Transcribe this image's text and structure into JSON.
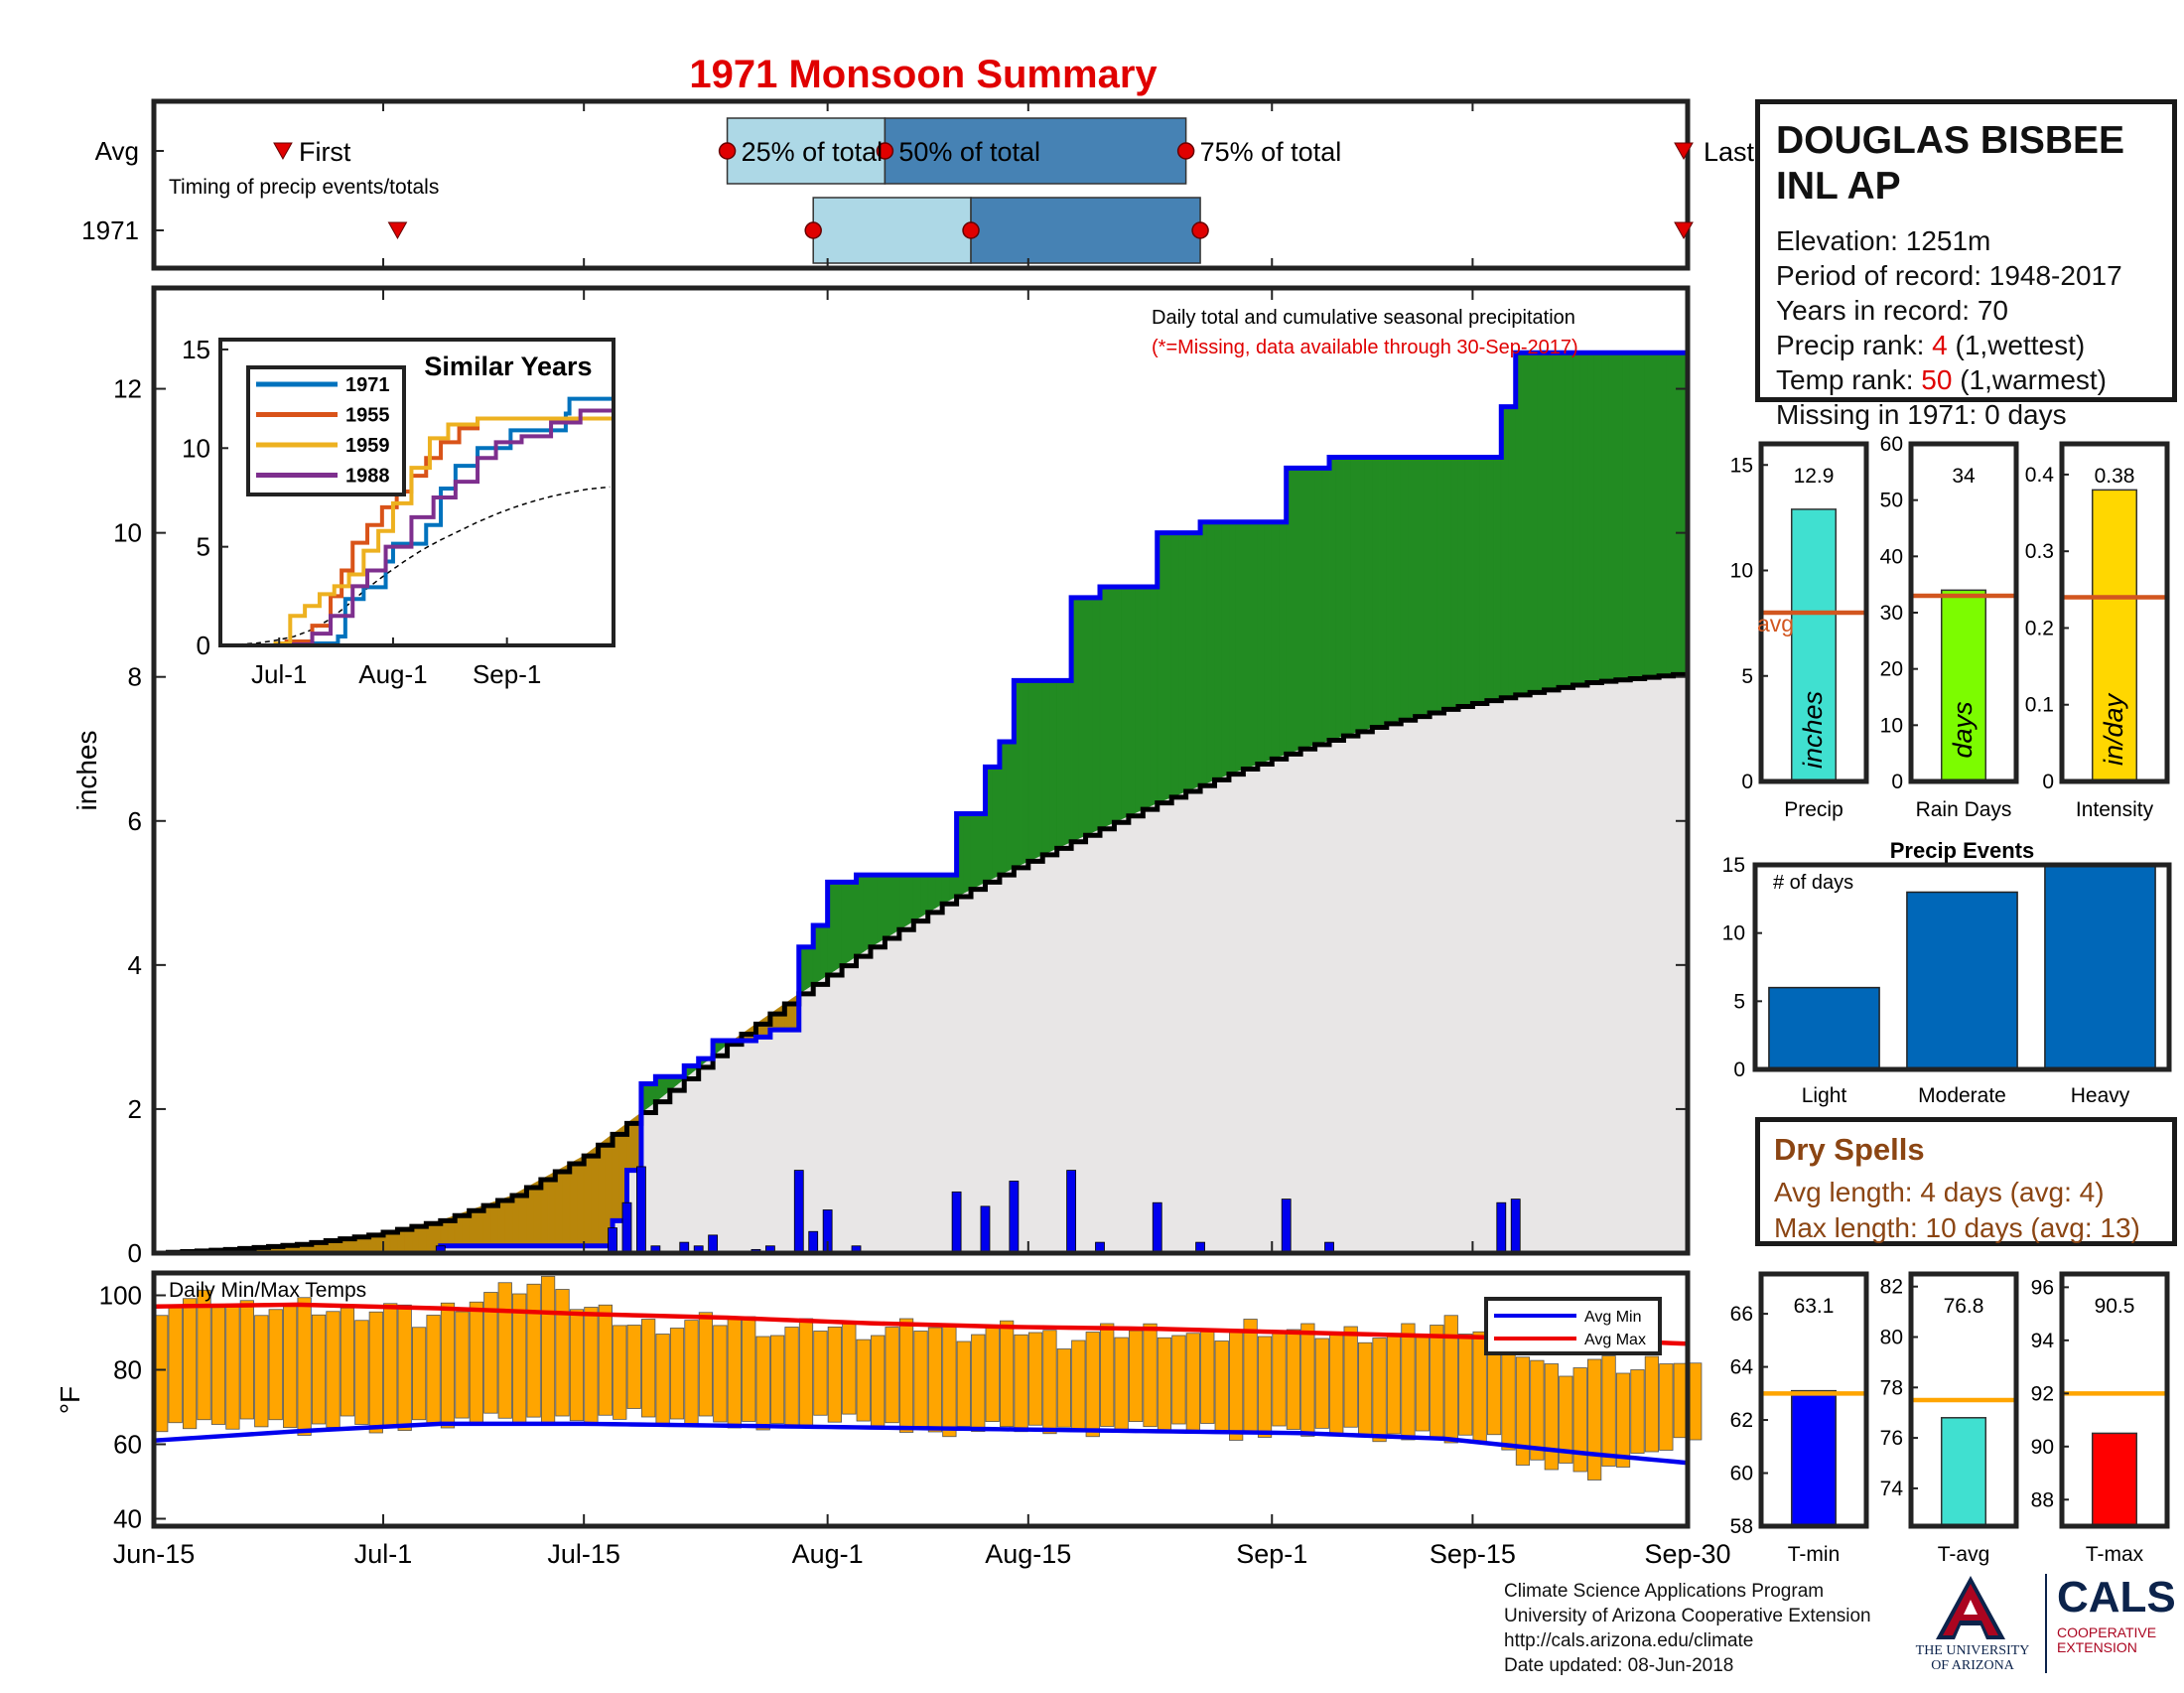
{
  "title": "1971 Monsoon Summary",
  "colors": {
    "title": "#e00000",
    "boxLight": "#add8e6",
    "boxDark": "#4682b4",
    "green": "#228b22",
    "brown": "#b8860b",
    "grey": "#e8e6e6",
    "blue": "#0000ee",
    "orange": "#ffa500",
    "avgLine": "#d2561f",
    "red": "#ee0000",
    "eventBar": "#0067b8"
  },
  "timing": {
    "row_labels": [
      "Avg",
      "1971"
    ],
    "avg_labels": {
      "first": "First",
      "p25": "25% of total",
      "p50": "50% of total",
      "p75": "75% of total",
      "last": "Last"
    },
    "subtitle": "Timing of precip events/totals",
    "avg": {
      "first": 9,
      "p25": 40,
      "p50": 51,
      "p75": 72,
      "last": 107
    },
    "y1971": {
      "first": 17,
      "p25": 46,
      "p50": 57,
      "p75": 73,
      "last": 122
    }
  },
  "info": {
    "station_line1": "DOUGLAS BISBEE",
    "station_line2": "INL AP",
    "elevation": "Elevation: 1251m",
    "period": "Period of record: 1948-2017",
    "years": "Years in record: 70",
    "precip_rank_label": "Precip rank: ",
    "precip_rank_value": "4",
    "precip_rank_note": " (1,wettest)",
    "temp_rank_label": "Temp rank: ",
    "temp_rank_value": "50",
    "temp_rank_note": " (1,warmest)",
    "missing": "Missing in 1971: 0 days"
  },
  "main": {
    "ylabel": "inches",
    "note1": "Daily total and cumulative seasonal precipitation",
    "note2": "(*=Missing, data available through 30-Sep-2017)",
    "yticks": [
      0,
      2,
      4,
      6,
      8,
      10,
      12
    ],
    "ylim": [
      0,
      13.4
    ],
    "xticks": [
      {
        "day": 0,
        "label": "Jun-15"
      },
      {
        "day": 16,
        "label": "Jul-1"
      },
      {
        "day": 30,
        "label": "Jul-15"
      },
      {
        "day": 47,
        "label": "Aug-1"
      },
      {
        "day": 61,
        "label": "Aug-15"
      },
      {
        "day": 78,
        "label": "Sep-1"
      },
      {
        "day": 92,
        "label": "Sep-15"
      },
      {
        "day": 107,
        "label": "Sep-30"
      }
    ],
    "xlim": [
      0,
      107
    ]
  },
  "chart_data": {
    "type": "line",
    "x_unit": "day of season (0 = Jun-15)",
    "daily_precip": [
      [
        20,
        0.1
      ],
      [
        32,
        0.35
      ],
      [
        33,
        0.7
      ],
      [
        34,
        1.2
      ],
      [
        35,
        0.1
      ],
      [
        37,
        0.15
      ],
      [
        38,
        0.1
      ],
      [
        39,
        0.25
      ],
      [
        42,
        0.05
      ],
      [
        43,
        0.1
      ],
      [
        45,
        1.15
      ],
      [
        46,
        0.3
      ],
      [
        47,
        0.6
      ],
      [
        49,
        0.1
      ],
      [
        56,
        0.85
      ],
      [
        58,
        0.65
      ],
      [
        60,
        1.0
      ],
      [
        64,
        1.15
      ],
      [
        66,
        0.15
      ],
      [
        70,
        0.7
      ],
      [
        73,
        0.15
      ],
      [
        79,
        0.75
      ],
      [
        82,
        0.15
      ],
      [
        94,
        0.7
      ],
      [
        95,
        0.75
      ]
    ],
    "cum_1971": [
      [
        0,
        0
      ],
      [
        20,
        0.1
      ],
      [
        32,
        0.45
      ],
      [
        33,
        1.15
      ],
      [
        34,
        2.35
      ],
      [
        35,
        2.45
      ],
      [
        37,
        2.6
      ],
      [
        38,
        2.7
      ],
      [
        39,
        2.95
      ],
      [
        42,
        3.0
      ],
      [
        43,
        3.1
      ],
      [
        45,
        4.25
      ],
      [
        46,
        4.55
      ],
      [
        47,
        5.15
      ],
      [
        49,
        5.25
      ],
      [
        56,
        6.1
      ],
      [
        58,
        6.75
      ],
      [
        59,
        7.1
      ],
      [
        60,
        7.95
      ],
      [
        64,
        9.1
      ],
      [
        66,
        9.25
      ],
      [
        70,
        10.0
      ],
      [
        73,
        10.15
      ],
      [
        79,
        10.9
      ],
      [
        82,
        11.05
      ],
      [
        94,
        11.75
      ],
      [
        95,
        12.5
      ],
      [
        107,
        12.9
      ]
    ],
    "cum_avg": [
      [
        0,
        0
      ],
      [
        5,
        0.05
      ],
      [
        10,
        0.12
      ],
      [
        15,
        0.25
      ],
      [
        20,
        0.45
      ],
      [
        25,
        0.8
      ],
      [
        30,
        1.35
      ],
      [
        35,
        2.1
      ],
      [
        40,
        2.9
      ],
      [
        45,
        3.6
      ],
      [
        50,
        4.25
      ],
      [
        55,
        4.85
      ],
      [
        60,
        5.35
      ],
      [
        65,
        5.8
      ],
      [
        70,
        6.25
      ],
      [
        75,
        6.65
      ],
      [
        80,
        7.0
      ],
      [
        85,
        7.3
      ],
      [
        90,
        7.55
      ],
      [
        95,
        7.75
      ],
      [
        100,
        7.92
      ],
      [
        107,
        8.05
      ]
    ],
    "similar_years": {
      "title": "Similar Years",
      "xticks": [
        {
          "day": 16,
          "label": "Jul-1"
        },
        {
          "day": 47,
          "label": "Aug-1"
        },
        {
          "day": 78,
          "label": "Sep-1"
        }
      ],
      "yticks": [
        0,
        5,
        10,
        15
      ],
      "series": [
        {
          "name": "1971",
          "color": "#0072bd",
          "points": [
            [
              0,
              0
            ],
            [
              20,
              0.1
            ],
            [
              32,
              0.45
            ],
            [
              34,
              2.35
            ],
            [
              39,
              2.95
            ],
            [
              45,
              4.25
            ],
            [
              47,
              5.15
            ],
            [
              56,
              6.1
            ],
            [
              60,
              7.95
            ],
            [
              64,
              9.1
            ],
            [
              70,
              10.0
            ],
            [
              79,
              10.9
            ],
            [
              94,
              11.75
            ],
            [
              95,
              12.5
            ],
            [
              107,
              12.9
            ]
          ]
        },
        {
          "name": "1955",
          "color": "#d95319",
          "points": [
            [
              0,
              0
            ],
            [
              18,
              0.2
            ],
            [
              25,
              1.0
            ],
            [
              30,
              2.5
            ],
            [
              33,
              3.8
            ],
            [
              36,
              5.2
            ],
            [
              40,
              6.1
            ],
            [
              44,
              7.0
            ],
            [
              48,
              7.8
            ],
            [
              52,
              8.6
            ],
            [
              56,
              9.5
            ],
            [
              60,
              10.3
            ],
            [
              65,
              11.0
            ],
            [
              70,
              11.5
            ],
            [
              107,
              11.6
            ]
          ]
        },
        {
          "name": "1959",
          "color": "#edb120",
          "points": [
            [
              0,
              0
            ],
            [
              15,
              0.1
            ],
            [
              19,
              1.5
            ],
            [
              23,
              2.0
            ],
            [
              27,
              2.6
            ],
            [
              31,
              3.0
            ],
            [
              35,
              3.6
            ],
            [
              39,
              4.8
            ],
            [
              43,
              5.8
            ],
            [
              47,
              7.2
            ],
            [
              52,
              9.0
            ],
            [
              57,
              10.5
            ],
            [
              62,
              11.2
            ],
            [
              70,
              11.5
            ],
            [
              107,
              11.5
            ]
          ]
        },
        {
          "name": "1988",
          "color": "#7e2f8e",
          "points": [
            [
              0,
              0
            ],
            [
              20,
              0.05
            ],
            [
              25,
              0.6
            ],
            [
              30,
              1.5
            ],
            [
              36,
              3.0
            ],
            [
              40,
              3.8
            ],
            [
              45,
              5.0
            ],
            [
              52,
              6.5
            ],
            [
              58,
              7.5
            ],
            [
              64,
              8.3
            ],
            [
              70,
              9.5
            ],
            [
              75,
              10.3
            ],
            [
              82,
              10.6
            ],
            [
              90,
              11.3
            ],
            [
              98,
              11.9
            ],
            [
              107,
              11.9
            ]
          ]
        }
      ]
    },
    "summary_bars": [
      {
        "label": "Precip",
        "value": 12.9,
        "value_text": "12.9",
        "avg": 8.0,
        "avg_label": "avg",
        "unit": "inches",
        "ymax": 16,
        "yticks": [
          0,
          5,
          10,
          15
        ],
        "color": "#40e0d0"
      },
      {
        "label": "Rain Days",
        "value": 34,
        "value_text": "34",
        "avg": 33,
        "unit": "days",
        "ymax": 60,
        "yticks": [
          0,
          10,
          20,
          30,
          40,
          50,
          60
        ],
        "color": "#7cfc00"
      },
      {
        "label": "Intensity",
        "value": 0.38,
        "value_text": "0.38",
        "avg": 0.24,
        "unit": "in/day",
        "ymax": 0.44,
        "yticks": [
          0,
          0.1,
          0.2,
          0.3,
          0.4
        ],
        "color": "#ffd700"
      }
    ],
    "precip_events": {
      "title": "Precip Events",
      "ylabel": "# of days",
      "categories": [
        "Light",
        "Moderate",
        "Heavy"
      ],
      "values": [
        6,
        13,
        15
      ],
      "yticks": [
        0,
        5,
        10,
        15
      ],
      "ymax": 15
    },
    "temps": {
      "title": "Daily Min/Max Temps",
      "ylabel": "°F",
      "yticks": [
        40,
        60,
        80,
        100
      ],
      "ylim": [
        38,
        106
      ],
      "legend": [
        "Avg Min",
        "Avg Max"
      ],
      "avg_min": [
        [
          0,
          61
        ],
        [
          10,
          63.5
        ],
        [
          20,
          65.5
        ],
        [
          30,
          65.5
        ],
        [
          40,
          65
        ],
        [
          50,
          64.5
        ],
        [
          60,
          64
        ],
        [
          70,
          63.5
        ],
        [
          80,
          63
        ],
        [
          90,
          61.5
        ],
        [
          100,
          57.5
        ],
        [
          107,
          55
        ]
      ],
      "avg_max": [
        [
          0,
          97
        ],
        [
          10,
          97.5
        ],
        [
          20,
          96.5
        ],
        [
          30,
          95
        ],
        [
          40,
          94
        ],
        [
          50,
          92.5
        ],
        [
          60,
          91.5
        ],
        [
          70,
          91
        ],
        [
          80,
          90
        ],
        [
          90,
          89
        ],
        [
          100,
          88
        ],
        [
          107,
          87
        ]
      ],
      "daily_max_keypoints": [
        [
          0,
          97
        ],
        [
          3,
          99
        ],
        [
          6,
          97
        ],
        [
          10,
          97
        ],
        [
          13,
          95
        ],
        [
          16,
          97
        ],
        [
          18,
          93
        ],
        [
          21,
          98
        ],
        [
          24,
          101
        ],
        [
          26,
          103
        ],
        [
          28,
          104
        ],
        [
          29,
          97
        ],
        [
          31,
          95
        ],
        [
          33,
          92
        ],
        [
          36,
          92
        ],
        [
          40,
          94
        ],
        [
          43,
          90
        ],
        [
          46,
          92
        ],
        [
          50,
          90
        ],
        [
          53,
          92
        ],
        [
          56,
          90
        ],
        [
          60,
          91
        ],
        [
          63,
          88
        ],
        [
          66,
          90
        ],
        [
          70,
          91
        ],
        [
          73,
          88
        ],
        [
          76,
          92
        ],
        [
          79,
          90
        ],
        [
          83,
          90
        ],
        [
          86,
          89
        ],
        [
          90,
          93
        ],
        [
          93,
          90
        ],
        [
          95,
          85
        ],
        [
          97,
          80
        ],
        [
          100,
          82
        ],
        [
          103,
          80
        ],
        [
          105,
          84
        ],
        [
          107,
          81
        ]
      ],
      "daily_min_keypoints": [
        [
          0,
          65
        ],
        [
          3,
          65
        ],
        [
          6,
          66
        ],
        [
          10,
          64
        ],
        [
          13,
          66
        ],
        [
          16,
          64
        ],
        [
          20,
          66
        ],
        [
          24,
          67
        ],
        [
          28,
          66
        ],
        [
          31,
          67
        ],
        [
          33,
          68
        ],
        [
          36,
          66
        ],
        [
          40,
          66
        ],
        [
          43,
          64
        ],
        [
          46,
          67
        ],
        [
          50,
          66
        ],
        [
          53,
          63
        ],
        [
          56,
          64
        ],
        [
          60,
          65
        ],
        [
          63,
          63
        ],
        [
          66,
          64
        ],
        [
          70,
          65
        ],
        [
          73,
          64
        ],
        [
          76,
          62
        ],
        [
          79,
          64
        ],
        [
          83,
          63
        ],
        [
          86,
          62
        ],
        [
          90,
          62
        ],
        [
          93,
          61
        ],
        [
          95,
          56
        ],
        [
          97,
          54
        ],
        [
          100,
          52
        ],
        [
          103,
          56
        ],
        [
          105,
          60
        ],
        [
          107,
          62
        ]
      ],
      "summary": [
        {
          "label": "T-min",
          "value": 63.1,
          "value_text": "63.1",
          "avg": 63.0,
          "yticks": [
            58,
            60,
            62,
            64,
            66
          ],
          "ylim": [
            58,
            67.5
          ],
          "color": "#0000ff"
        },
        {
          "label": "T-avg",
          "value": 76.8,
          "value_text": "76.8",
          "avg": 77.5,
          "yticks": [
            74,
            76,
            78,
            80,
            82
          ],
          "ylim": [
            72.5,
            82.5
          ],
          "color": "#40e0d0"
        },
        {
          "label": "T-max",
          "value": 90.5,
          "value_text": "90.5",
          "avg": 92.0,
          "yticks": [
            88,
            90,
            92,
            94,
            96
          ],
          "ylim": [
            87,
            96.5
          ],
          "color": "#ff0000"
        }
      ]
    }
  },
  "dry_spells": {
    "title": "Dry Spells",
    "avg_length": "Avg length: 4 days (avg: 4)",
    "max_length": "Max length: 10 days (avg: 13)"
  },
  "credits": {
    "line1": "Climate Science Applications Program",
    "line2": "University of Arizona Cooperative Extension",
    "line3": "http://cals.arizona.edu/climate",
    "line4": " Date updated: 08-Jun-2018"
  },
  "logos": {
    "ua_letter": "A",
    "ua_text1": "THE UNIVERSITY",
    "ua_text2": "OF ARIZONA",
    "cals": "CALS",
    "cals_sub1": "COOPERATIVE",
    "cals_sub2": "EXTENSION"
  }
}
